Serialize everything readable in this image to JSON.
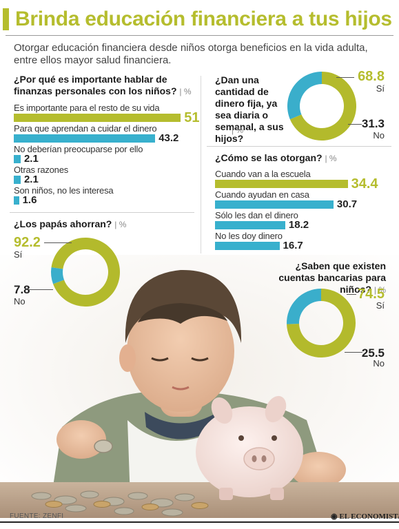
{
  "title": "Brinda educación financiera a tus hijos",
  "subtitle": "Otorgar educación financiera desde niños otorga beneficios en la vida adulta, entre ellos mayor salud financiera.",
  "colors": {
    "green": "#b5bd2e",
    "blue": "#38b0cd",
    "ring_green": "#b3ba2c",
    "ring_blue": "#3aaecb"
  },
  "source": "FUENTE: ZENFI",
  "brand": "EL ECONOMISTA",
  "unit_label": "%",
  "chart_data": [
    {
      "type": "bar",
      "title": "¿Por qué es importante hablar de finanzas personales con los niños?",
      "unit": "%",
      "categories": [
        "Es importante para el resto de su vida",
        "Para que aprendan a cuidar el dinero",
        "No deberían preocuparse por ello",
        "Otras razones",
        "Son niños, no les interesa"
      ],
      "values": [
        51,
        43.2,
        2.1,
        2.1,
        1.6
      ],
      "value_labels": [
        "51",
        "43.2",
        "2.1",
        "2.1",
        "1.6"
      ]
    },
    {
      "type": "bar",
      "title": "¿Cómo se las otorgan?",
      "unit": "%",
      "categories": [
        "Cuando van a la escuela",
        "Cuando ayudan en casa",
        "Sólo les dan el dinero",
        "No les doy dinero"
      ],
      "values": [
        34.4,
        30.7,
        18.2,
        16.7
      ],
      "value_labels": [
        "34.4",
        "30.7",
        "18.2",
        "16.7"
      ]
    },
    {
      "type": "pie",
      "title": "¿Dan una cantidad de dinero fija, ya sea diaria o semanal, a sus hijos?",
      "unit": "%",
      "categories": [
        "Sí",
        "No"
      ],
      "values": [
        68.8,
        31.3
      ],
      "value_labels": [
        "68.8",
        "31.3"
      ]
    },
    {
      "type": "pie",
      "title": "¿Los papás ahorran?",
      "unit": "%",
      "categories": [
        "Sí",
        "No"
      ],
      "values": [
        92.2,
        7.8
      ],
      "value_labels": [
        "92.2",
        "7.8"
      ]
    },
    {
      "type": "pie",
      "title": "¿Saben que existen cuentas bancarias para niños?",
      "unit": "%",
      "categories": [
        "Sí",
        "No"
      ],
      "values": [
        74.5,
        25.5
      ],
      "value_labels": [
        "74.5",
        "25.5"
      ]
    }
  ]
}
